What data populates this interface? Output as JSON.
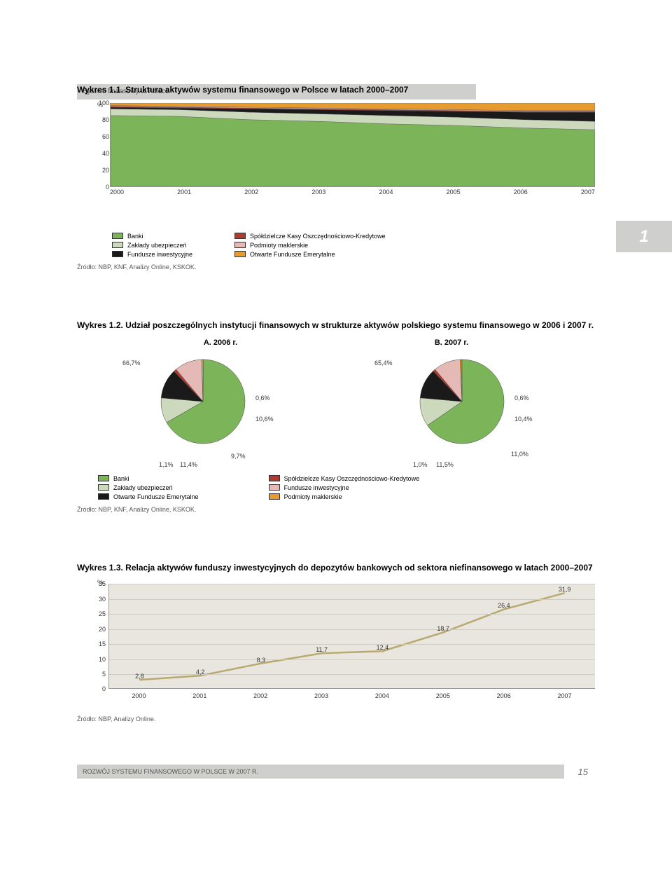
{
  "header": {
    "section_title": "System finansowy w Polsce"
  },
  "side_tag": "1",
  "chart1": {
    "type": "stacked-area",
    "title_prefix": "Wykres 1.1.",
    "title": "Struktura aktywów systemu finansowego w Polsce w latach 2000–2007",
    "y_unit": "%",
    "ylim": [
      0,
      100
    ],
    "yticks": [
      0,
      20,
      40,
      60,
      80,
      100
    ],
    "xticks": [
      "2000",
      "2001",
      "2002",
      "2003",
      "2004",
      "2005",
      "2006",
      "2007"
    ],
    "background_color": "#e8e6de",
    "series": [
      {
        "name": "Banki",
        "color": "#7cb45a",
        "values": [
          85,
          84,
          80,
          78,
          75,
          73,
          70,
          68
        ]
      },
      {
        "name": "Zakłady ubezpieczeń",
        "color": "#cdd9bc",
        "values": [
          8,
          8,
          9,
          9,
          10,
          10,
          10,
          10
        ]
      },
      {
        "name": "Fundusze inwestycyjne",
        "color": "#1a1a1a",
        "values": [
          2,
          2,
          4,
          5,
          6,
          7,
          9,
          11
        ]
      },
      {
        "name": "Spółdzielcze Kasy Oszczędnościowo-Kredytowe",
        "color": "#b03a2e",
        "values": [
          1,
          1,
          1,
          1,
          1,
          1,
          1,
          1
        ]
      },
      {
        "name": "Podmioty maklerskie",
        "color": "#e5b9b5",
        "values": [
          1,
          1,
          1,
          1,
          1,
          1,
          1,
          1
        ]
      },
      {
        "name": "Otwarte Fundusze Emerytalne",
        "color": "#e79b2f",
        "values": [
          3,
          4,
          5,
          6,
          7,
          8,
          9,
          9
        ]
      }
    ],
    "source": "Źródło: NBP, KNF, Analizy Online, KSKOK."
  },
  "chart2": {
    "type": "pie",
    "title_prefix": "Wykres 1.2.",
    "title": "Udział poszczególnych instytucji finansowych w strukturze aktywów polskiego systemu finansowego w 2006 i 2007 r.",
    "subtitle_a": "A. 2006 r.",
    "subtitle_b": "B. 2007 r.",
    "pie_a": {
      "slices": [
        {
          "label": "66,7%",
          "value": 66.7,
          "color": "#7cb45a"
        },
        {
          "label": "9,7%",
          "value": 9.7,
          "color": "#cdd9bc"
        },
        {
          "label": "11,4%",
          "value": 11.4,
          "color": "#1a1a1a"
        },
        {
          "label": "1,1%",
          "value": 1.1,
          "color": "#b03a2e"
        },
        {
          "label": "10,6%",
          "value": 10.6,
          "color": "#e5b9b5"
        },
        {
          "label": "0,6%",
          "value": 0.6,
          "color": "#e79b2f"
        }
      ]
    },
    "pie_b": {
      "slices": [
        {
          "label": "65,4%",
          "value": 65.4,
          "color": "#7cb45a"
        },
        {
          "label": "11,0%",
          "value": 11.0,
          "color": "#cdd9bc"
        },
        {
          "label": "11,5%",
          "value": 11.5,
          "color": "#1a1a1a"
        },
        {
          "label": "1,0%",
          "value": 1.0,
          "color": "#b03a2e"
        },
        {
          "label": "10,4%",
          "value": 10.4,
          "color": "#e5b9b5"
        },
        {
          "label": "0,6%",
          "value": 0.6,
          "color": "#e79b2f"
        }
      ]
    },
    "legend_left": [
      {
        "label": "Banki",
        "color": "#7cb45a"
      },
      {
        "label": "Zakłady ubezpieczeń",
        "color": "#cdd9bc"
      },
      {
        "label": "Otwarte Fundusze Emerytalne",
        "color": "#1a1a1a"
      }
    ],
    "legend_right": [
      {
        "label": "Spółdzielcze Kasy Oszczędnościowo-Kredytowe",
        "color": "#b03a2e"
      },
      {
        "label": "Fundusze inwestycyjne",
        "color": "#e5b9b5"
      },
      {
        "label": "Podmioty maklerskie",
        "color": "#e79b2f"
      }
    ],
    "source": "Źródło: NBP, KNF, Analizy Online, KSKOK."
  },
  "chart3": {
    "type": "line",
    "title_prefix": "Wykres 1.3.",
    "title": "Relacja aktywów funduszy inwestycyjnych do depozytów bankowych od sektora niefinansowego w latach 2000–2007",
    "y_unit": "%",
    "ylim": [
      0,
      35
    ],
    "yticks": [
      0,
      5,
      10,
      15,
      20,
      25,
      30,
      35
    ],
    "xticks": [
      "2000",
      "2001",
      "2002",
      "2003",
      "2004",
      "2005",
      "2006",
      "2007"
    ],
    "background_color": "#e8e6de",
    "grid_color": "#cdccc4",
    "line_color": "#b7a96f",
    "data_labels": [
      "2,8",
      "4,2",
      "8,3",
      "11,7",
      "12,4",
      "18,7",
      "26,4",
      "31,9"
    ],
    "values": [
      2.8,
      4.2,
      8.3,
      11.7,
      12.4,
      18.7,
      26.4,
      31.9
    ],
    "source": "Źródło: NBP, Analizy Online."
  },
  "footer": {
    "text": "ROZWÓJ SYSTEMU FINANSOWEGO W POLSCE W 2007 R.",
    "page": "15"
  }
}
